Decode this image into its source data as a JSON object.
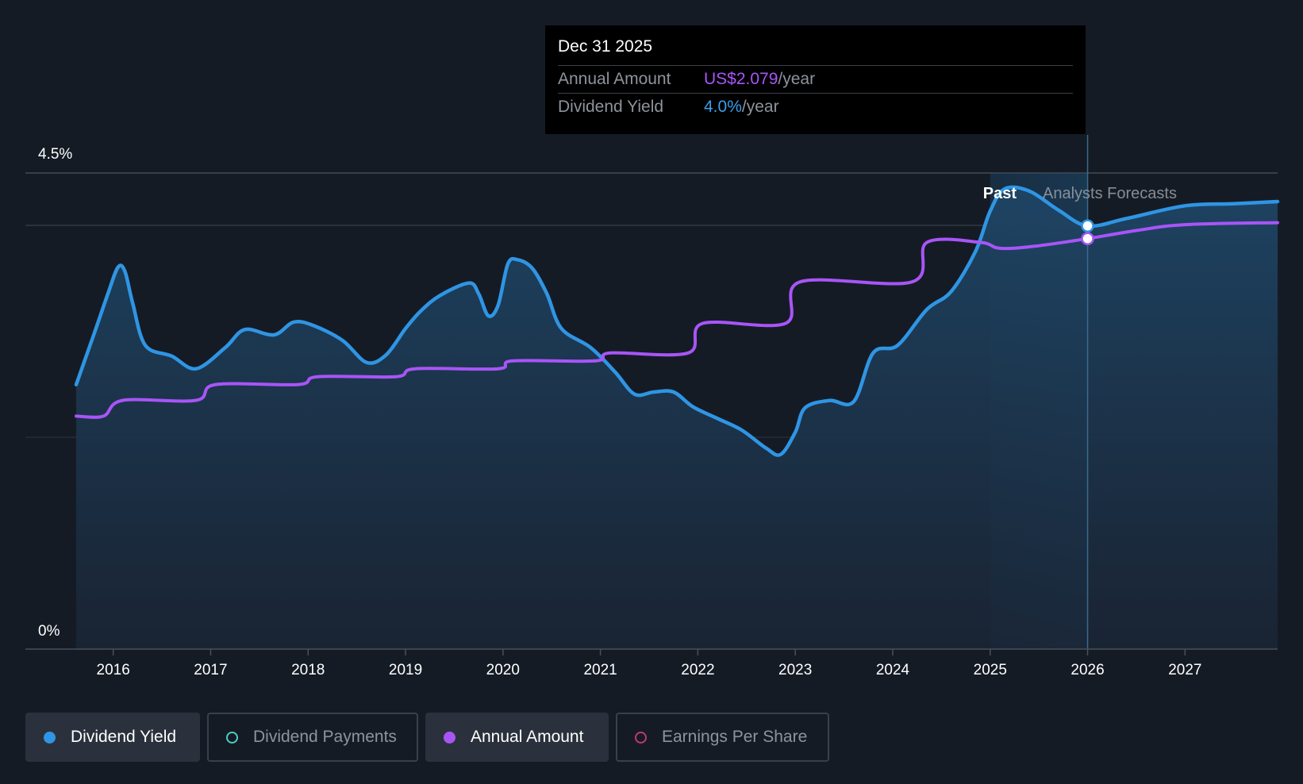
{
  "tooltip": {
    "date": "Dec 31 2025",
    "annual_label": "Annual Amount",
    "annual_value": "US$2.079",
    "annual_unit": "/year",
    "yield_label": "Dividend Yield",
    "yield_value": "4.0%",
    "yield_unit": "/year"
  },
  "legend": [
    {
      "label": "Dividend Yield",
      "color": "#2f95e4",
      "active": true,
      "filled": true
    },
    {
      "label": "Dividend Payments",
      "color": "#4ecdc4",
      "active": false,
      "filled": false
    },
    {
      "label": "Annual Amount",
      "color": "#a855f7",
      "active": true,
      "filled": true
    },
    {
      "label": "Earnings Per Share",
      "color": "#c2396b",
      "active": false,
      "filled": false
    }
  ],
  "colors": {
    "yield": "#2f95e4",
    "annual": "#a855f7",
    "background": "#151b25"
  },
  "chart_data": {
    "type": "line",
    "y_tick_labels": [
      "4.5%",
      "0%"
    ],
    "x_tick_labels": [
      "2016",
      "2017",
      "2018",
      "2019",
      "2020",
      "2021",
      "2022",
      "2023",
      "2024",
      "2025",
      "2026",
      "2027"
    ],
    "x_range": [
      2015.62,
      2027.95
    ],
    "y_range_pct": [
      0,
      4.5
    ],
    "grid": true,
    "past_label": "Past",
    "forecast_label": "Analysts Forecasts",
    "forecast_start": 2025.0,
    "highlight_band": [
      2025.45,
      2026.0
    ],
    "selected_x": 2026.0,
    "series": [
      {
        "name": "Dividend Yield",
        "unit": "%",
        "filled": true,
        "points": [
          [
            2015.62,
            2.5
          ],
          [
            2015.8,
            2.97
          ],
          [
            2015.95,
            3.37
          ],
          [
            2016.05,
            3.61
          ],
          [
            2016.12,
            3.57
          ],
          [
            2016.2,
            3.27
          ],
          [
            2016.33,
            2.87
          ],
          [
            2016.6,
            2.77
          ],
          [
            2016.85,
            2.65
          ],
          [
            2017.15,
            2.85
          ],
          [
            2017.35,
            3.02
          ],
          [
            2017.65,
            2.97
          ],
          [
            2017.85,
            3.09
          ],
          [
            2018.05,
            3.06
          ],
          [
            2018.35,
            2.92
          ],
          [
            2018.6,
            2.71
          ],
          [
            2018.8,
            2.78
          ],
          [
            2019.0,
            3.03
          ],
          [
            2019.15,
            3.19
          ],
          [
            2019.35,
            3.34
          ],
          [
            2019.65,
            3.46
          ],
          [
            2019.75,
            3.36
          ],
          [
            2019.85,
            3.15
          ],
          [
            2019.95,
            3.25
          ],
          [
            2020.05,
            3.64
          ],
          [
            2020.15,
            3.68
          ],
          [
            2020.3,
            3.6
          ],
          [
            2020.45,
            3.36
          ],
          [
            2020.6,
            3.03
          ],
          [
            2020.9,
            2.85
          ],
          [
            2021.15,
            2.62
          ],
          [
            2021.35,
            2.41
          ],
          [
            2021.55,
            2.43
          ],
          [
            2021.75,
            2.43
          ],
          [
            2021.95,
            2.29
          ],
          [
            2022.2,
            2.18
          ],
          [
            2022.45,
            2.07
          ],
          [
            2022.7,
            1.9
          ],
          [
            2022.85,
            1.84
          ],
          [
            2023.0,
            2.05
          ],
          [
            2023.1,
            2.28
          ],
          [
            2023.35,
            2.35
          ],
          [
            2023.6,
            2.34
          ],
          [
            2023.8,
            2.8
          ],
          [
            2024.05,
            2.87
          ],
          [
            2024.35,
            3.21
          ],
          [
            2024.6,
            3.38
          ],
          [
            2024.85,
            3.76
          ],
          [
            2025.0,
            4.14
          ],
          [
            2025.15,
            4.35
          ],
          [
            2025.4,
            4.33
          ],
          [
            2025.7,
            4.15
          ],
          [
            2026.0,
            4.0
          ],
          [
            2026.4,
            4.07
          ],
          [
            2027.0,
            4.19
          ],
          [
            2027.5,
            4.21
          ],
          [
            2027.95,
            4.23
          ]
        ]
      },
      {
        "name": "Annual Amount",
        "unit": "US$/year",
        "filled": false,
        "points": [
          [
            2015.62,
            1.18
          ],
          [
            2015.9,
            1.18
          ],
          [
            2016.1,
            1.26
          ],
          [
            2016.85,
            1.26
          ],
          [
            2017.05,
            1.34
          ],
          [
            2017.9,
            1.34
          ],
          [
            2018.1,
            1.38
          ],
          [
            2018.9,
            1.38
          ],
          [
            2019.1,
            1.42
          ],
          [
            2019.95,
            1.42
          ],
          [
            2020.1,
            1.46
          ],
          [
            2020.95,
            1.46
          ],
          [
            2021.1,
            1.5
          ],
          [
            2021.9,
            1.5
          ],
          [
            2022.05,
            1.65
          ],
          [
            2022.9,
            1.65
          ],
          [
            2023.05,
            1.86
          ],
          [
            2024.2,
            1.86
          ],
          [
            2024.35,
            2.06
          ],
          [
            2024.9,
            2.06
          ],
          [
            2025.1,
            2.03
          ],
          [
            2025.45,
            2.04
          ],
          [
            2026.0,
            2.079
          ],
          [
            2026.5,
            2.12
          ],
          [
            2027.0,
            2.15
          ],
          [
            2027.95,
            2.16
          ]
        ]
      }
    ]
  }
}
